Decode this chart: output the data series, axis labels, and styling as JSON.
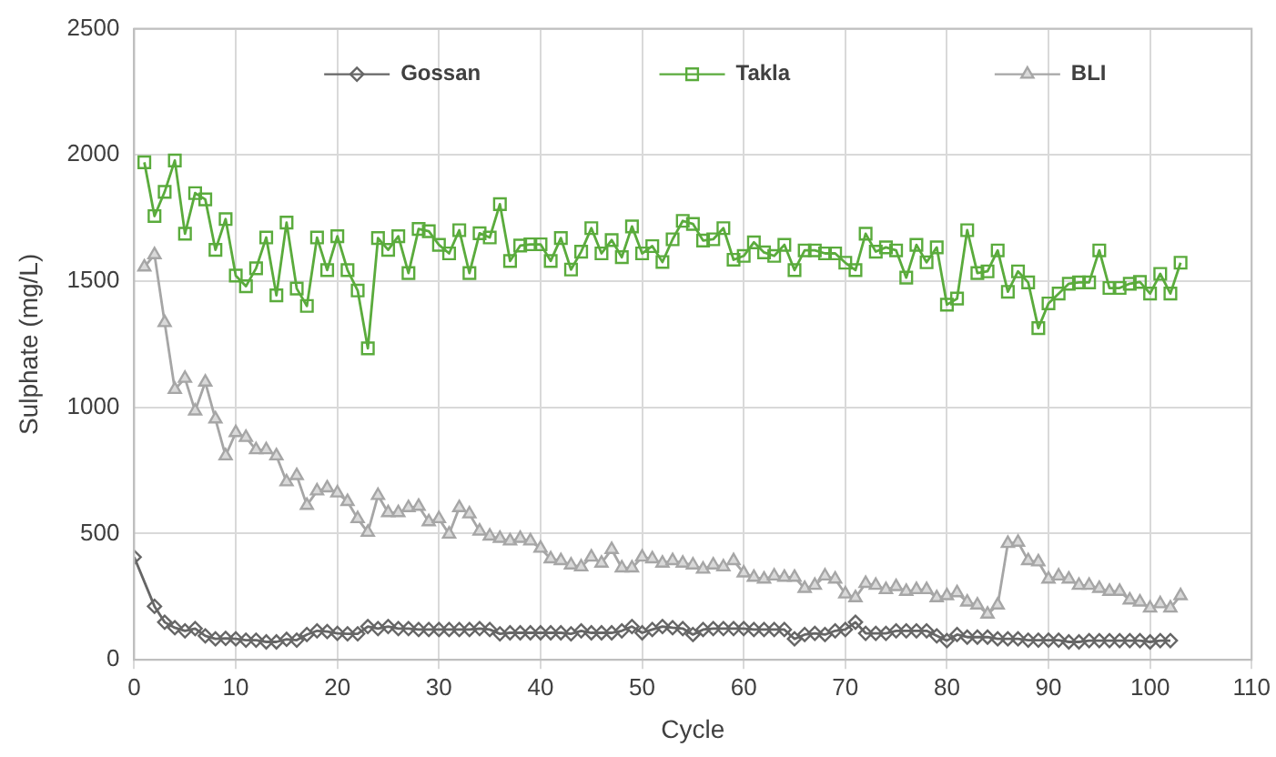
{
  "chart_data": {
    "type": "line",
    "xlabel": "Cycle",
    "ylabel": "Sulphate (mg/L)",
    "xlim": [
      0,
      110
    ],
    "xticks": [
      0,
      10,
      20,
      30,
      40,
      50,
      60,
      70,
      80,
      90,
      100,
      110
    ],
    "ylim": [
      0,
      2500
    ],
    "yticks": [
      0,
      500,
      1000,
      1500,
      2000,
      2500
    ],
    "grid": true,
    "legend": "top",
    "line_style": "solid",
    "x": [
      0,
      1,
      2,
      3,
      4,
      5,
      6,
      7,
      8,
      9,
      10,
      11,
      12,
      13,
      14,
      15,
      16,
      17,
      18,
      19,
      20,
      21,
      22,
      23,
      24,
      25,
      26,
      27,
      28,
      29,
      30,
      31,
      32,
      33,
      34,
      35,
      36,
      37,
      38,
      39,
      40,
      41,
      42,
      43,
      44,
      45,
      46,
      47,
      48,
      49,
      50,
      51,
      52,
      53,
      54,
      55,
      56,
      57,
      58,
      59,
      60,
      61,
      62,
      63,
      64,
      65,
      66,
      67,
      68,
      69,
      70,
      71,
      72,
      73,
      74,
      75,
      76,
      77,
      78,
      79,
      80,
      81,
      82,
      83,
      84,
      85,
      86,
      87,
      88,
      89,
      90,
      91,
      92,
      93,
      94,
      95,
      96,
      97,
      98,
      99,
      100,
      101,
      102,
      103
    ],
    "series": [
      {
        "name": "Gossan",
        "color": "#666666",
        "marker": "diamond",
        "values": [
          407,
          null,
          212,
          149,
          127,
          115,
          124,
          95,
          83,
          85,
          83,
          78,
          78,
          71,
          71,
          81,
          78,
          100,
          115,
          112,
          105,
          103,
          103,
          132,
          124,
          132,
          124,
          124,
          120,
          120,
          120,
          120,
          120,
          120,
          124,
          120,
          103,
          107,
          107,
          107,
          107,
          107,
          107,
          103,
          115,
          107,
          107,
          107,
          115,
          132,
          107,
          120,
          132,
          127,
          124,
          100,
          120,
          124,
          124,
          124,
          124,
          120,
          120,
          120,
          120,
          83,
          100,
          105,
          100,
          115,
          120,
          149,
          105,
          105,
          105,
          115,
          115,
          115,
          115,
          95,
          76,
          100,
          90,
          90,
          90,
          83,
          83,
          83,
          78,
          78,
          78,
          78,
          71,
          71,
          76,
          76,
          76,
          76,
          76,
          76,
          71,
          76,
          76,
          null
        ]
      },
      {
        "name": "Takla",
        "color": "#5aab3c",
        "marker": "square",
        "values": [
          null,
          1971,
          1758,
          1854,
          1978,
          1688,
          1849,
          1824,
          1624,
          1746,
          1522,
          1480,
          1551,
          1673,
          1444,
          1732,
          1471,
          1402,
          1673,
          1544,
          1678,
          1544,
          1463,
          1234,
          1671,
          1624,
          1678,
          1532,
          1707,
          1698,
          1644,
          1610,
          1702,
          1532,
          1690,
          1673,
          1805,
          1580,
          1641,
          1646,
          1646,
          1580,
          1671,
          1546,
          1617,
          1710,
          1610,
          1663,
          1595,
          1717,
          1610,
          1639,
          1576,
          1666,
          1739,
          1727,
          1661,
          1666,
          1710,
          1585,
          1600,
          1654,
          1614,
          1600,
          1644,
          1544,
          1622,
          1622,
          1610,
          1610,
          1573,
          1544,
          1688,
          1617,
          1634,
          1622,
          1514,
          1644,
          1575,
          1634,
          1407,
          1431,
          1702,
          1532,
          1539,
          1622,
          1458,
          1539,
          1495,
          1314,
          1412,
          1451,
          1490,
          1495,
          1495,
          1622,
          1473,
          1473,
          1490,
          1497,
          1451,
          1529,
          1451,
          1573
        ]
      },
      {
        "name": "BLI",
        "color": "#a6a6a6",
        "marker": "triangle",
        "values": [
          null,
          1556,
          1605,
          1336,
          1071,
          1115,
          986,
          1100,
          954,
          808,
          900,
          881,
          832,
          832,
          808,
          705,
          730,
          612,
          669,
          681,
          661,
          627,
          559,
          505,
          651,
          583,
          583,
          603,
          608,
          547,
          559,
          498,
          603,
          578,
          510,
          490,
          481,
          471,
          481,
          471,
          442,
          400,
          393,
          376,
          368,
          407,
          383,
          437,
          364,
          364,
          407,
          400,
          383,
          393,
          383,
          376,
          359,
          376,
          368,
          393,
          344,
          327,
          320,
          332,
          327,
          327,
          283,
          295,
          332,
          320,
          261,
          246,
          303,
          295,
          278,
          290,
          271,
          278,
          278,
          246,
          254,
          266,
          229,
          217,
          181,
          217,
          461,
          466,
          393,
          388,
          320,
          332,
          320,
          295,
          295,
          283,
          271,
          271,
          237,
          229,
          205,
          222,
          205,
          254
        ]
      }
    ]
  }
}
